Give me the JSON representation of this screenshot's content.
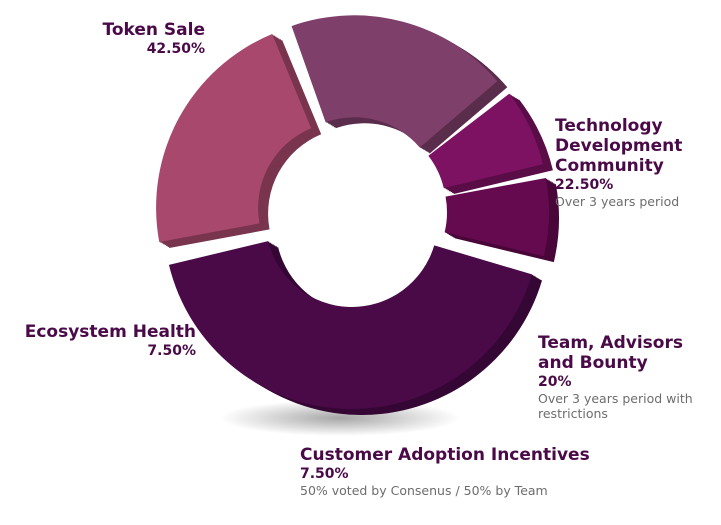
{
  "chart_data": {
    "type": "donut",
    "categories": [
      "Token Sale",
      "Technology Development Community",
      "Team, Advisors and Bounty",
      "Customer Adoption Incentives",
      "Ecosystem Health"
    ],
    "values": [
      42.5,
      22.5,
      20,
      7.5,
      7.5
    ],
    "value_labels": [
      "42.50%",
      "22.50%",
      "20%",
      "7.50%",
      "7.50%"
    ],
    "notes": [
      null,
      "Over 3 years period",
      "Over 3 years period with restrictions",
      "50%  voted by Consenus / 50% by Team",
      null
    ],
    "colors": [
      "#4a0a48",
      "#a8486c",
      "#7e3f6a",
      "#7d1263",
      "#650a4f"
    ]
  }
}
